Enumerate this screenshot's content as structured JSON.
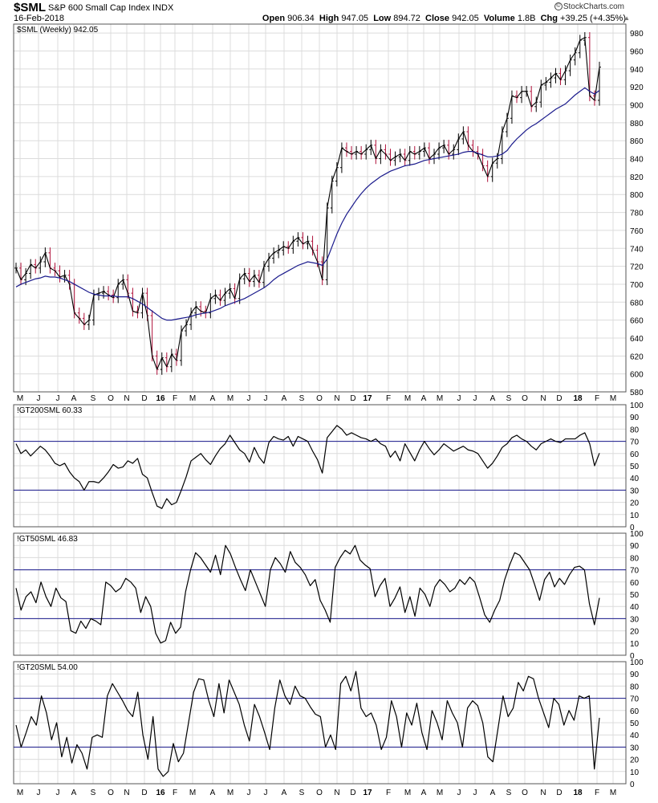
{
  "header": {
    "symbol": "$SML",
    "name": "S&P 600 Small Cap Index",
    "exchange": "INDX",
    "date": "16-Feb-2018",
    "open_label": "Open",
    "open": "906.34",
    "high_label": "High",
    "high": "947.05",
    "low_label": "Low",
    "low": "894.72",
    "close_label": "Close",
    "close": "942.05",
    "volume_label": "Volume",
    "volume": "1.8B",
    "chg_label": "Chg",
    "chg": "+39.25 (+4.35%)",
    "brand": "StockCharts.com",
    "brand_mark": "©"
  },
  "colors": {
    "up_bar": "#000000",
    "down_bar": "#b0103a",
    "ma_line": "#1a1a8c",
    "indicator_line": "#000000",
    "threshold_line": "#1a1a8c",
    "grid": "#dcdcdc"
  },
  "chart_data": [
    {
      "type": "line",
      "panel": "price",
      "title": "$SML (Weekly) 942.05",
      "title_icon": "price-bar-icon",
      "ylim": [
        580,
        990
      ],
      "yticks": [
        580,
        600,
        620,
        640,
        660,
        680,
        700,
        720,
        740,
        760,
        780,
        800,
        820,
        840,
        860,
        880,
        900,
        920,
        940,
        960,
        980
      ],
      "x_labels": [
        "M",
        "J",
        "J",
        "A",
        "S",
        "O",
        "N",
        "D",
        "16",
        "F",
        "M",
        "A",
        "M",
        "J",
        "J",
        "A",
        "S",
        "O",
        "N",
        "D",
        "17",
        "F",
        "M",
        "A",
        "M",
        "J",
        "J",
        "A",
        "S",
        "O",
        "N",
        "D",
        "18",
        "F",
        "M"
      ],
      "bold_x_labels": [
        "16",
        "17",
        "18"
      ],
      "grid": true,
      "series": [
        {
          "values": [
            718,
            705,
            712,
            722,
            718,
            725,
            735,
            718,
            715,
            708,
            710,
            700,
            668,
            662,
            655,
            660,
            688,
            690,
            692,
            688,
            685,
            700,
            705,
            690,
            670,
            668,
            690,
            665,
            620,
            605,
            618,
            608,
            622,
            615,
            648,
            655,
            668,
            675,
            670,
            668,
            684,
            688,
            682,
            690,
            695,
            684,
            706,
            712,
            703,
            710,
            702,
            720,
            729,
            735,
            738,
            742,
            740,
            748,
            752,
            745,
            748,
            738,
            725,
            705,
            785,
            815,
            830,
            852,
            848,
            845,
            848,
            845,
            850,
            855,
            840,
            850,
            845,
            838,
            842,
            845,
            838,
            848,
            845,
            848,
            852,
            840,
            845,
            852,
            855,
            845,
            850,
            862,
            870,
            855,
            848,
            845,
            832,
            820,
            835,
            840,
            870,
            885,
            910,
            908,
            915,
            915,
            898,
            903,
            922,
            925,
            930,
            935,
            928,
            938,
            950,
            958,
            972,
            975,
            910,
            905,
            942
          ]
        },
        {
          "name": "",
          "values": [
            697,
            700,
            702,
            704,
            706,
            707,
            709,
            708,
            708,
            707,
            705,
            703,
            700,
            697,
            694,
            691,
            689,
            688,
            687,
            687,
            687,
            686,
            686,
            686,
            684,
            681,
            678,
            674,
            670,
            666,
            662,
            660,
            660,
            661,
            662,
            663,
            664,
            666,
            667,
            668,
            669,
            671,
            673,
            676,
            678,
            680,
            682,
            684,
            687,
            690,
            693,
            696,
            700,
            705,
            709,
            712,
            715,
            718,
            721,
            723,
            725,
            724,
            723,
            721,
            728,
            742,
            756,
            768,
            778,
            786,
            794,
            801,
            807,
            812,
            816,
            820,
            823,
            826,
            828,
            830,
            832,
            833,
            834,
            836,
            838,
            839,
            840,
            841,
            842,
            843,
            844,
            845,
            847,
            848,
            848,
            846,
            844,
            842,
            842,
            843,
            845,
            849,
            856,
            862,
            867,
            872,
            876,
            879,
            883,
            887,
            891,
            895,
            898,
            901,
            906,
            911,
            915,
            919,
            915,
            912,
            916
          ]
        }
      ]
    },
    {
      "type": "line",
      "panel": "indicator",
      "title": "!GT200SML 60.33",
      "ylim": [
        0,
        100
      ],
      "yticks": [
        0,
        10,
        20,
        30,
        40,
        50,
        60,
        70,
        80,
        90,
        100
      ],
      "thresholds": [
        70,
        30
      ],
      "grid": true,
      "values": [
        68,
        60,
        63,
        58,
        62,
        66,
        63,
        58,
        52,
        50,
        52,
        45,
        40,
        37,
        30,
        37,
        37,
        36,
        40,
        45,
        51,
        48,
        49,
        54,
        52,
        56,
        43,
        40,
        28,
        17,
        15,
        23,
        18,
        20,
        30,
        41,
        54,
        57,
        60,
        55,
        51,
        58,
        64,
        68,
        75,
        69,
        63,
        60,
        53,
        65,
        57,
        52,
        69,
        74,
        72,
        71,
        74,
        66,
        74,
        72,
        70,
        62,
        55,
        44,
        73,
        78,
        83,
        80,
        75,
        77,
        75,
        73,
        72,
        70,
        72,
        68,
        66,
        57,
        62,
        54,
        68,
        61,
        54,
        63,
        70,
        64,
        59,
        63,
        68,
        65,
        62,
        64,
        66,
        63,
        62,
        60,
        54,
        48,
        52,
        58,
        65,
        68,
        73,
        75,
        72,
        70,
        66,
        63,
        68,
        70,
        72,
        70,
        69,
        72,
        72,
        72,
        75,
        77,
        68,
        50,
        60.33
      ]
    },
    {
      "type": "line",
      "panel": "indicator",
      "title": "!GT50SML 46.83",
      "ylim": [
        0,
        100
      ],
      "yticks": [
        0,
        10,
        20,
        30,
        40,
        50,
        60,
        70,
        80,
        90,
        100
      ],
      "thresholds": [
        70,
        30
      ],
      "grid": true,
      "values": [
        55,
        37,
        48,
        52,
        43,
        60,
        48,
        40,
        55,
        47,
        44,
        20,
        18,
        28,
        22,
        30,
        28,
        25,
        60,
        57,
        52,
        55,
        63,
        60,
        55,
        35,
        48,
        40,
        18,
        10,
        12,
        27,
        18,
        23,
        52,
        70,
        84,
        80,
        74,
        68,
        82,
        66,
        90,
        83,
        72,
        62,
        53,
        70,
        60,
        50,
        40,
        70,
        80,
        75,
        68,
        85,
        76,
        72,
        66,
        57,
        62,
        45,
        37,
        27,
        72,
        80,
        86,
        83,
        90,
        78,
        74,
        71,
        48,
        57,
        63,
        40,
        47,
        56,
        35,
        48,
        32,
        55,
        50,
        40,
        56,
        62,
        58,
        52,
        55,
        62,
        58,
        64,
        60,
        47,
        33,
        27,
        37,
        45,
        62,
        74,
        84,
        82,
        76,
        70,
        58,
        45,
        62,
        68,
        56,
        63,
        58,
        66,
        72,
        73,
        70,
        42,
        25,
        47
      ]
    },
    {
      "type": "line",
      "panel": "indicator",
      "title": "!GT20SML 54.00",
      "ylim": [
        0,
        100
      ],
      "yticks": [
        0,
        10,
        20,
        30,
        40,
        50,
        60,
        70,
        80,
        90,
        100
      ],
      "thresholds": [
        70,
        30
      ],
      "grid": true,
      "values": [
        48,
        30,
        42,
        55,
        48,
        72,
        58,
        36,
        50,
        22,
        38,
        17,
        32,
        25,
        12,
        38,
        40,
        38,
        72,
        82,
        75,
        68,
        60,
        55,
        75,
        40,
        20,
        55,
        12,
        6,
        10,
        33,
        18,
        25,
        50,
        75,
        86,
        85,
        68,
        55,
        82,
        58,
        85,
        75,
        65,
        48,
        35,
        65,
        55,
        42,
        28,
        62,
        85,
        72,
        65,
        80,
        72,
        70,
        63,
        57,
        55,
        30,
        40,
        28,
        82,
        88,
        76,
        92,
        62,
        55,
        58,
        48,
        28,
        38,
        68,
        55,
        30,
        58,
        48,
        66,
        42,
        28,
        60,
        50,
        36,
        68,
        58,
        50,
        30,
        62,
        68,
        64,
        50,
        22,
        18,
        45,
        72,
        55,
        62,
        83,
        76,
        88,
        86,
        70,
        58,
        46,
        70,
        65,
        48,
        60,
        52,
        72,
        70,
        72,
        12,
        54
      ]
    }
  ]
}
